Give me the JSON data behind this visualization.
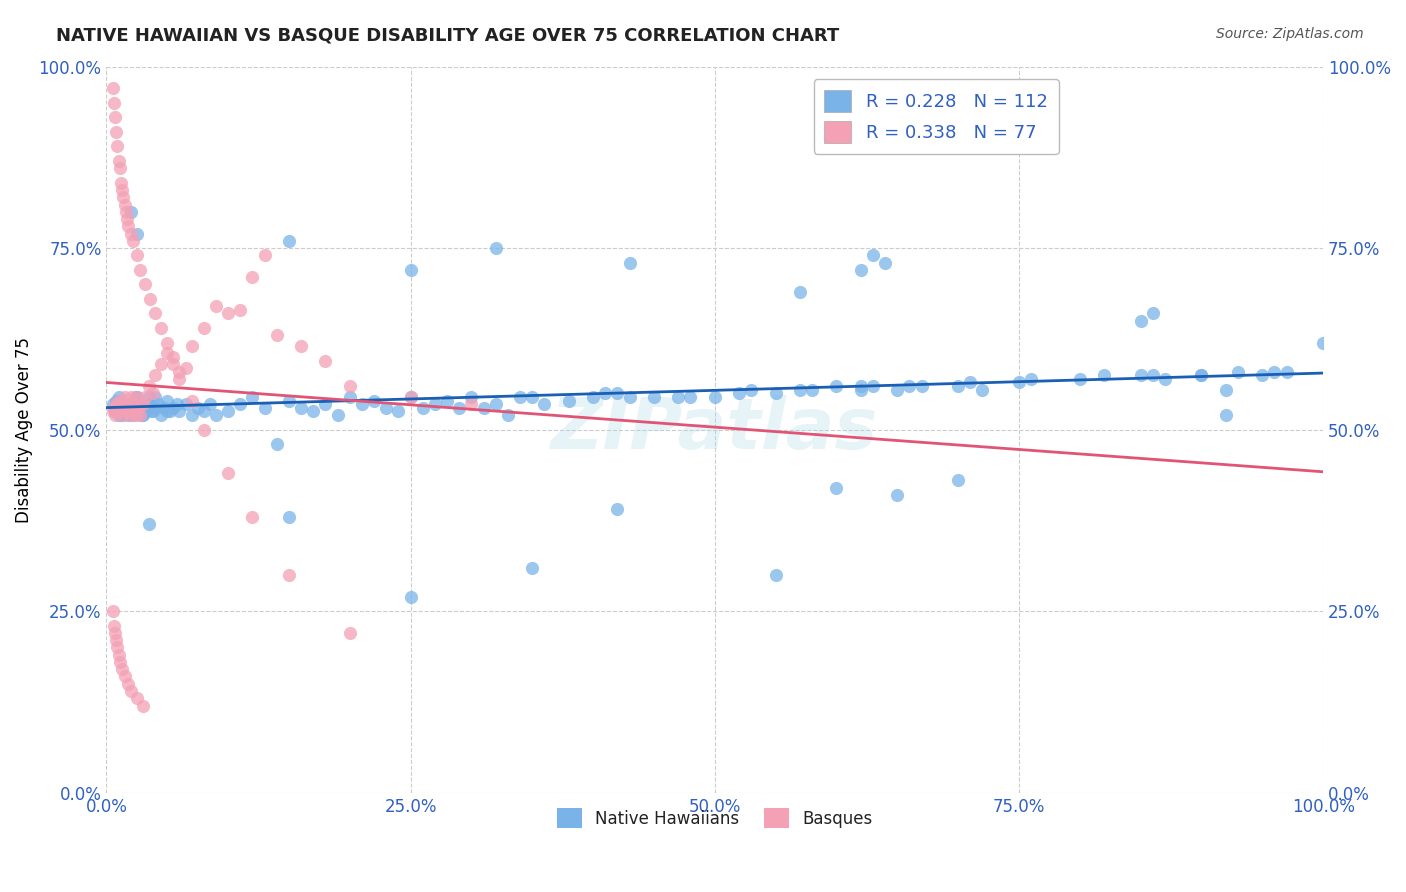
{
  "title": "NATIVE HAWAIIAN VS BASQUE DISABILITY AGE OVER 75 CORRELATION CHART",
  "source": "Source: ZipAtlas.com",
  "ylabel": "Disability Age Over 75",
  "xlim": [
    0.0,
    1.0
  ],
  "ylim": [
    0.0,
    1.0
  ],
  "xticks": [
    0.0,
    0.25,
    0.5,
    0.75,
    1.0
  ],
  "yticks": [
    0.0,
    0.25,
    0.5,
    0.75,
    1.0
  ],
  "xtick_labels": [
    "0.0%",
    "25.0%",
    "50.0%",
    "75.0%",
    "100.0%"
  ],
  "ytick_labels": [
    "0.0%",
    "25.0%",
    "50.0%",
    "75.0%",
    "100.0%"
  ],
  "blue_color": "#7ab3e8",
  "pink_color": "#f4a0b5",
  "blue_line_color": "#1a5fb4",
  "pink_line_color": "#e05575",
  "tick_color": "#3060c0",
  "R_blue": "0.228",
  "N_blue": "112",
  "R_pink": "0.338",
  "N_pink": "77",
  "watermark": "ZIPatlas",
  "blue_x": [
    0.005,
    0.007,
    0.008,
    0.01,
    0.01,
    0.012,
    0.013,
    0.015,
    0.015,
    0.017,
    0.018,
    0.02,
    0.02,
    0.022,
    0.025,
    0.025,
    0.027,
    0.028,
    0.03,
    0.03,
    0.032,
    0.035,
    0.035,
    0.038,
    0.04,
    0.04,
    0.045,
    0.05,
    0.05,
    0.055,
    0.06,
    0.065,
    0.07,
    0.075,
    0.08,
    0.085,
    0.09,
    0.1,
    0.11,
    0.12,
    0.13,
    0.14,
    0.15,
    0.16,
    0.17,
    0.18,
    0.19,
    0.2,
    0.21,
    0.22,
    0.23,
    0.24,
    0.25,
    0.26,
    0.27,
    0.28,
    0.29,
    0.3,
    0.31,
    0.32,
    0.33,
    0.35,
    0.36,
    0.38,
    0.4,
    0.41,
    0.43,
    0.45,
    0.47,
    0.5,
    0.52,
    0.55,
    0.57,
    0.6,
    0.62,
    0.63,
    0.65,
    0.67,
    0.7,
    0.72,
    0.75,
    0.8,
    0.85,
    0.87,
    0.9,
    0.92,
    0.95,
    0.97,
    1.0,
    0.34,
    0.42,
    0.48,
    0.53,
    0.58,
    0.62,
    0.66,
    0.71,
    0.76,
    0.82,
    0.86,
    0.9,
    0.93,
    0.96,
    0.013,
    0.019,
    0.024,
    0.029,
    0.033,
    0.037,
    0.042,
    0.047,
    0.052,
    0.058
  ],
  "blue_y": [
    0.535,
    0.525,
    0.54,
    0.52,
    0.545,
    0.53,
    0.52,
    0.525,
    0.535,
    0.53,
    0.52,
    0.525,
    0.535,
    0.52,
    0.53,
    0.545,
    0.525,
    0.535,
    0.52,
    0.53,
    0.525,
    0.535,
    0.545,
    0.525,
    0.53,
    0.545,
    0.52,
    0.525,
    0.54,
    0.53,
    0.525,
    0.535,
    0.52,
    0.53,
    0.525,
    0.535,
    0.52,
    0.525,
    0.535,
    0.545,
    0.53,
    0.48,
    0.54,
    0.53,
    0.525,
    0.535,
    0.52,
    0.545,
    0.535,
    0.54,
    0.53,
    0.525,
    0.545,
    0.53,
    0.535,
    0.54,
    0.53,
    0.545,
    0.53,
    0.535,
    0.52,
    0.545,
    0.535,
    0.54,
    0.545,
    0.55,
    0.545,
    0.545,
    0.545,
    0.545,
    0.55,
    0.55,
    0.555,
    0.56,
    0.555,
    0.56,
    0.555,
    0.56,
    0.56,
    0.555,
    0.565,
    0.57,
    0.575,
    0.57,
    0.575,
    0.555,
    0.575,
    0.58,
    0.62,
    0.545,
    0.55,
    0.545,
    0.555,
    0.555,
    0.56,
    0.56,
    0.565,
    0.57,
    0.575,
    0.575,
    0.575,
    0.58,
    0.58,
    0.525,
    0.535,
    0.545,
    0.52,
    0.53,
    0.525,
    0.535,
    0.53,
    0.525,
    0.535
  ],
  "blue_x2": [
    0.02,
    0.025,
    0.15,
    0.25,
    0.32,
    0.43,
    0.57,
    0.62,
    0.63,
    0.64,
    0.85,
    0.86,
    0.92
  ],
  "blue_y2": [
    0.8,
    0.77,
    0.76,
    0.72,
    0.75,
    0.73,
    0.69,
    0.72,
    0.74,
    0.73,
    0.65,
    0.66,
    0.52
  ],
  "blue_x3": [
    0.035,
    0.15,
    0.25,
    0.35,
    0.42,
    0.55,
    0.6,
    0.65,
    0.7
  ],
  "blue_y3": [
    0.37,
    0.38,
    0.27,
    0.31,
    0.39,
    0.3,
    0.42,
    0.41,
    0.43
  ],
  "pink_x": [
    0.005,
    0.006,
    0.007,
    0.008,
    0.009,
    0.01,
    0.011,
    0.012,
    0.013,
    0.014,
    0.015,
    0.016,
    0.017,
    0.018,
    0.019,
    0.02,
    0.021,
    0.022,
    0.023,
    0.024,
    0.025,
    0.026,
    0.028,
    0.03,
    0.032,
    0.035,
    0.038,
    0.04,
    0.045,
    0.05,
    0.055,
    0.06,
    0.065,
    0.07,
    0.08,
    0.09,
    0.1,
    0.11,
    0.12,
    0.13,
    0.14,
    0.16,
    0.18,
    0.2,
    0.25,
    0.3
  ],
  "pink_y": [
    0.525,
    0.53,
    0.52,
    0.535,
    0.525,
    0.54,
    0.53,
    0.525,
    0.535,
    0.52,
    0.545,
    0.53,
    0.525,
    0.535,
    0.52,
    0.545,
    0.53,
    0.525,
    0.535,
    0.52,
    0.545,
    0.53,
    0.52,
    0.535,
    0.545,
    0.56,
    0.55,
    0.575,
    0.59,
    0.605,
    0.59,
    0.57,
    0.585,
    0.615,
    0.64,
    0.67,
    0.66,
    0.665,
    0.71,
    0.74,
    0.63,
    0.615,
    0.595,
    0.56,
    0.545,
    0.535
  ],
  "pink_x2": [
    0.005,
    0.006,
    0.007,
    0.008,
    0.009,
    0.01,
    0.011,
    0.012,
    0.013,
    0.014,
    0.015,
    0.016,
    0.017,
    0.018,
    0.02,
    0.022,
    0.025,
    0.028,
    0.032,
    0.036,
    0.04,
    0.045,
    0.05,
    0.055,
    0.06,
    0.07,
    0.08,
    0.1,
    0.12,
    0.15,
    0.2
  ],
  "pink_y2": [
    0.97,
    0.95,
    0.93,
    0.91,
    0.89,
    0.87,
    0.86,
    0.84,
    0.83,
    0.82,
    0.81,
    0.8,
    0.79,
    0.78,
    0.77,
    0.76,
    0.74,
    0.72,
    0.7,
    0.68,
    0.66,
    0.64,
    0.62,
    0.6,
    0.58,
    0.54,
    0.5,
    0.44,
    0.38,
    0.3,
    0.22
  ],
  "pink_x3": [
    0.005,
    0.006,
    0.007,
    0.008,
    0.009,
    0.01,
    0.011,
    0.013,
    0.015,
    0.018,
    0.02,
    0.025,
    0.03
  ],
  "pink_y3": [
    0.25,
    0.23,
    0.22,
    0.21,
    0.2,
    0.19,
    0.18,
    0.17,
    0.16,
    0.15,
    0.14,
    0.13,
    0.12
  ]
}
